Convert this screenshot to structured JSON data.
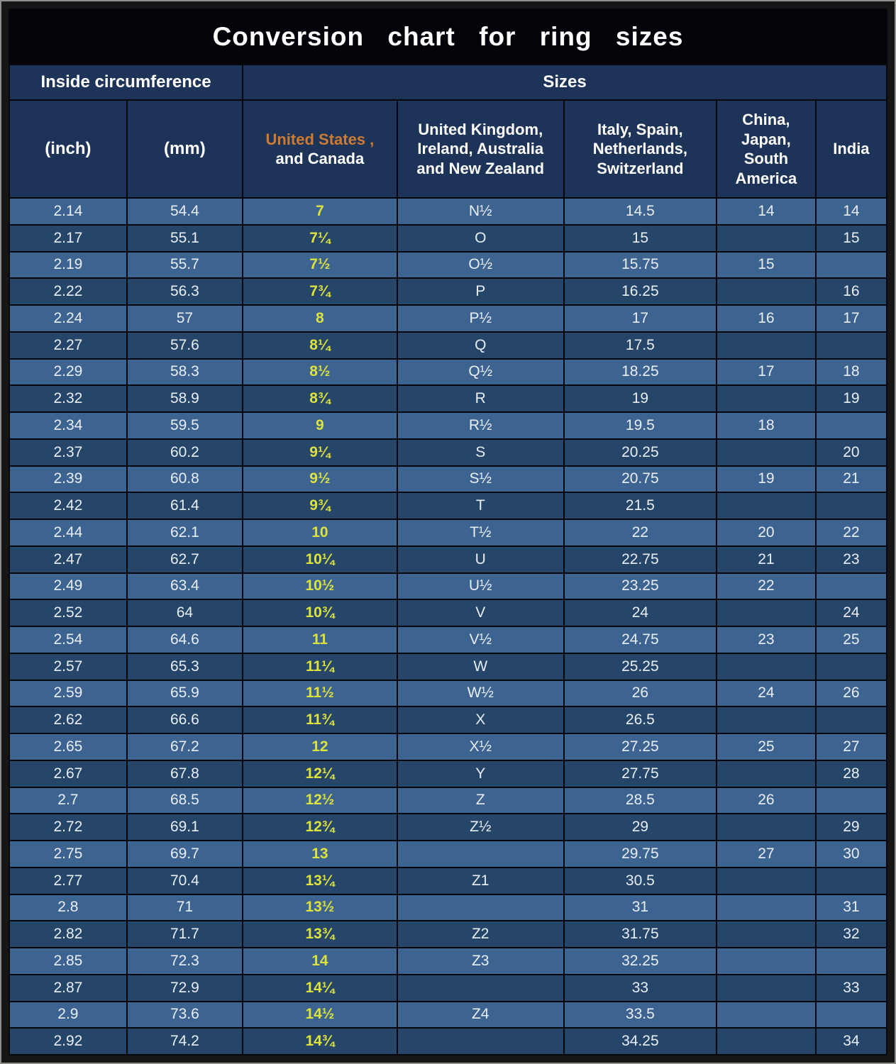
{
  "title": "Conversion  chart  for  ring  sizes",
  "header_groups": {
    "inside_circumference": "Inside circumference",
    "sizes": "Sizes"
  },
  "us_header": {
    "accent": "United States ,",
    "rest": "and Canada"
  },
  "colors": {
    "title_bg": "#03040a",
    "title_text": "#ffffff",
    "header_bg": "#1d3357",
    "row_light": "#3d6390",
    "row_dark": "#254569",
    "us_value": "#dde23c",
    "us_header_accent": "#cd7a35",
    "grid": "#05070d",
    "text": "#e9eef5",
    "table_bg": "#0c1020"
  },
  "chart_data": {
    "type": "table",
    "title": "Conversion chart for ring sizes",
    "column_groups": [
      {
        "label": "Inside circumference",
        "span": 2
      },
      {
        "label": "Sizes",
        "span": 5
      }
    ],
    "columns": [
      "(inch)",
      "(mm)",
      "United States , and Canada",
      "United Kingdom, Ireland, Australia and New Zealand",
      "Italy,  Spain, Netherlands, Switzerland",
      "China, Japan, South America",
      "India"
    ],
    "rows": [
      [
        "2.14",
        "54.4",
        "7",
        "N½",
        "14.5",
        "14",
        "14"
      ],
      [
        "2.17",
        "55.1",
        "7¼",
        "O",
        "15",
        "",
        "15"
      ],
      [
        "2.19",
        "55.7",
        "7½",
        "O½",
        "15.75",
        "15",
        ""
      ],
      [
        "2.22",
        "56.3",
        "7¾",
        "P",
        "16.25",
        "",
        "16"
      ],
      [
        "2.24",
        "57",
        "8",
        "P½",
        "17",
        "16",
        "17"
      ],
      [
        "2.27",
        "57.6",
        "8¼",
        "Q",
        "17.5",
        "",
        ""
      ],
      [
        "2.29",
        "58.3",
        "8½",
        "Q½",
        "18.25",
        "17",
        "18"
      ],
      [
        "2.32",
        "58.9",
        "8¾",
        "R",
        "19",
        "",
        "19"
      ],
      [
        "2.34",
        "59.5",
        "9",
        "R½",
        "19.5",
        "18",
        ""
      ],
      [
        "2.37",
        "60.2",
        "9¼",
        "S",
        "20.25",
        "",
        "20"
      ],
      [
        "2.39",
        "60.8",
        "9½",
        "S½",
        "20.75",
        "19",
        "21"
      ],
      [
        "2.42",
        "61.4",
        "9¾",
        "T",
        "21.5",
        "",
        ""
      ],
      [
        "2.44",
        "62.1",
        "10",
        "T½",
        "22",
        "20",
        "22"
      ],
      [
        "2.47",
        "62.7",
        "10¼",
        "U",
        "22.75",
        "21",
        "23"
      ],
      [
        "2.49",
        "63.4",
        "10½",
        "U½",
        "23.25",
        "22",
        ""
      ],
      [
        "2.52",
        "64",
        "10¾",
        "V",
        "24",
        "",
        "24"
      ],
      [
        "2.54",
        "64.6",
        "11",
        "V½",
        "24.75",
        "23",
        "25"
      ],
      [
        "2.57",
        "65.3",
        "11¼",
        "W",
        "25.25",
        "",
        ""
      ],
      [
        "2.59",
        "65.9",
        "11½",
        "W½",
        "26",
        "24",
        "26"
      ],
      [
        "2.62",
        "66.6",
        "11¾",
        "X",
        "26.5",
        "",
        ""
      ],
      [
        "2.65",
        "67.2",
        "12",
        "X½",
        "27.25",
        "25",
        "27"
      ],
      [
        "2.67",
        "67.8",
        "12¼",
        "Y",
        "27.75",
        "",
        "28"
      ],
      [
        "2.7",
        "68.5",
        "12½",
        "Z",
        "28.5",
        "26",
        ""
      ],
      [
        "2.72",
        "69.1",
        "12¾",
        "Z½",
        "29",
        "",
        "29"
      ],
      [
        "2.75",
        "69.7",
        "13",
        "",
        "29.75",
        "27",
        "30"
      ],
      [
        "2.77",
        "70.4",
        "13¼",
        "Z1",
        "30.5",
        "",
        ""
      ],
      [
        "2.8",
        "71",
        "13½",
        "",
        "31",
        "",
        "31"
      ],
      [
        "2.82",
        "71.7",
        "13¾",
        "Z2",
        "31.75",
        "",
        "32"
      ],
      [
        "2.85",
        "72.3",
        "14",
        "Z3",
        "32.25",
        "",
        ""
      ],
      [
        "2.87",
        "72.9",
        "14¼",
        "",
        "33",
        "",
        "33"
      ],
      [
        "2.9",
        "73.6",
        "14½",
        "Z4",
        "33.5",
        "",
        ""
      ],
      [
        "2.92",
        "74.2",
        "14¾",
        "",
        "34.25",
        "",
        "34"
      ]
    ]
  }
}
